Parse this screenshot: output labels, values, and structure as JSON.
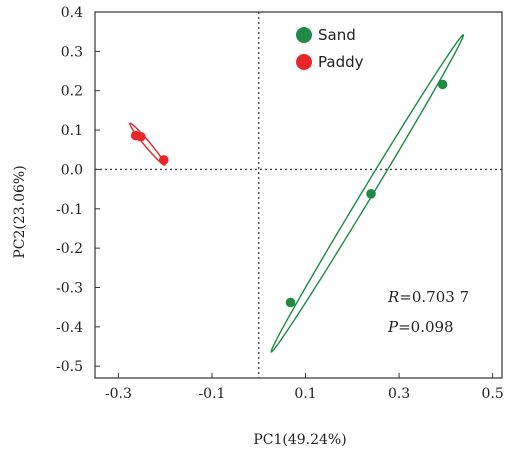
{
  "chart_data": {
    "type": "scatter",
    "xlabel": "PC1(49.24%)",
    "ylabel": "PC2(23.06%)",
    "xlim": [
      -0.35,
      0.52
    ],
    "ylim": [
      -0.53,
      0.4
    ],
    "x_ticks": [
      -0.3,
      -0.1,
      0.1,
      0.3,
      0.5
    ],
    "x_tick_labels": [
      "-0.3",
      "-0.1",
      "0.1",
      "0.3",
      "0.5"
    ],
    "y_ticks": [
      0.4,
      0.3,
      0.2,
      0.1,
      0.0,
      -0.1,
      -0.2,
      -0.3,
      -0.4,
      -0.5
    ],
    "y_tick_labels": [
      "0.4",
      "0.3",
      "0.2",
      "0.1",
      "0.0",
      "-0.1",
      "-0.2",
      "-0.3",
      "-0.4",
      "-0.5"
    ],
    "grid": false,
    "reference_lines": {
      "x": 0.0,
      "y": 0.0,
      "style": "dotted"
    },
    "legend_position": "top-center",
    "series": [
      {
        "name": "Sand",
        "color": "#1e8a45",
        "points": [
          {
            "x": 0.068,
            "y": -0.338
          },
          {
            "x": 0.24,
            "y": -0.062
          },
          {
            "x": 0.393,
            "y": 0.216
          }
        ],
        "ellipse": {
          "cx": 0.232,
          "cy": -0.061,
          "angle_deg": 58.8,
          "rx": 0.396,
          "ry": 0.011
        }
      },
      {
        "name": "Paddy",
        "color": "#e8262b",
        "points": [
          {
            "x": -0.263,
            "y": 0.086
          },
          {
            "x": -0.252,
            "y": 0.083
          },
          {
            "x": -0.203,
            "y": 0.024
          }
        ],
        "ellipse": {
          "cx": -0.238,
          "cy": 0.064,
          "angle_deg": -50,
          "rx": 0.058,
          "ry": 0.006
        }
      }
    ],
    "annotations": {
      "r_label": "R",
      "r_value": "=0.703 7",
      "p_label": "P",
      "p_value": "=0.098"
    }
  }
}
